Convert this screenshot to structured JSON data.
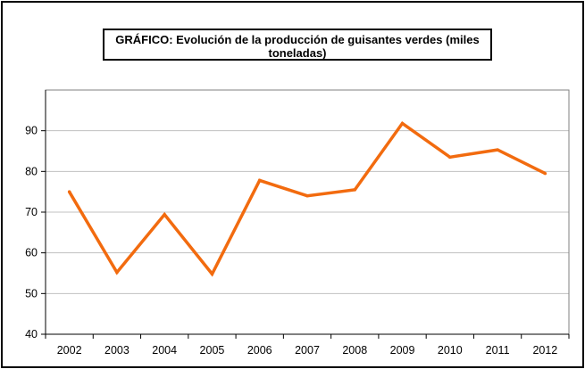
{
  "chart_data": {
    "type": "line",
    "title": "GRÁFICO: Evolución de la producción de guisantes verdes (miles\ntoneladas)",
    "categories": [
      "2002",
      "2003",
      "2004",
      "2005",
      "2006",
      "2007",
      "2008",
      "2009",
      "2010",
      "2011",
      "2012"
    ],
    "series": [
      {
        "values": [
          75,
          55.2,
          69.4,
          54.8,
          77.8,
          74,
          75.5,
          91.8,
          83.5,
          85.3,
          79.5
        ],
        "color": "#F26B0F"
      }
    ],
    "yticks": [
      "40",
      "50",
      "60",
      "70",
      "80",
      "90"
    ],
    "ylim": [
      40,
      100
    ],
    "grid": true,
    "legend": "none",
    "colors": {
      "line": "#F26B0F",
      "gridline": "#C0C0C0",
      "frame": "#000000"
    }
  }
}
